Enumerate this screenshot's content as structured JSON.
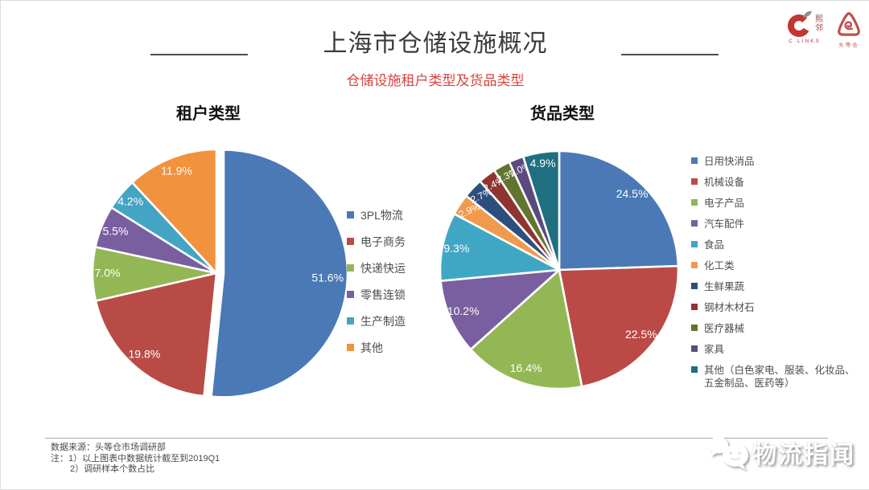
{
  "header": {
    "title": "上海市仓储设施概况",
    "subtitle": "仓储设施租户类型及货品类型"
  },
  "logos": {
    "clinks": {
      "cn1": "熙",
      "cn2": "邻",
      "en": "C·LINKS"
    },
    "toudengcang": {
      "label": "头等仓"
    }
  },
  "chart_data": [
    {
      "type": "pie",
      "title": "租户类型",
      "start_angle": 0,
      "direction": "clockwise",
      "legend_position": "right",
      "slices": [
        {
          "label": "3PL物流",
          "value": 51.6,
          "display": "51.6%",
          "color": "#4a79b6",
          "explode": 9
        },
        {
          "label": "电子商务",
          "value": 19.8,
          "display": "19.8%",
          "color": "#b94b47"
        },
        {
          "label": "快递快运",
          "value": 7.0,
          "display": "7.0%",
          "color": "#93b755"
        },
        {
          "label": "零售连锁",
          "value": 5.5,
          "display": "5.5%",
          "color": "#7a5fa0"
        },
        {
          "label": "生产制造",
          "value": 4.2,
          "display": "4.2%",
          "color": "#43a5c3"
        },
        {
          "label": "其他",
          "value": 11.9,
          "display": "11.9%",
          "color": "#f0923e"
        }
      ]
    },
    {
      "type": "pie",
      "title": "货品类型",
      "start_angle": 0,
      "direction": "clockwise",
      "legend_position": "right",
      "slices": [
        {
          "label": "日用快消品",
          "value": 24.5,
          "display": "24.5%",
          "color": "#4a79b6"
        },
        {
          "label": "机械设备",
          "value": 22.5,
          "display": "22.5%",
          "color": "#bb4a47"
        },
        {
          "label": "电子产品",
          "value": 16.4,
          "display": "16.4%",
          "color": "#93b755"
        },
        {
          "label": "汽车配件",
          "value": 10.2,
          "display": "10.2%",
          "color": "#7a5fa0"
        },
        {
          "label": "食品",
          "value": 9.3,
          "display": "9.3%",
          "color": "#3fa7c4"
        },
        {
          "label": "化工类",
          "value": 2.9,
          "display": "2.9%",
          "color": "#f09a4e"
        },
        {
          "label": "生鲜果蔬",
          "value": 2.7,
          "display": "2.7%",
          "color": "#2e4e7d"
        },
        {
          "label": "钢材木材石",
          "value": 2.4,
          "display": "2.4%",
          "color": "#8e3431"
        },
        {
          "label": "医疗器械",
          "value": 2.3,
          "display": "2.3%",
          "color": "#62752f"
        },
        {
          "label": "家具",
          "value": 2.0,
          "display": "2.0%",
          "color": "#5b4a7e"
        },
        {
          "label": "其他（白色家电、服装、化妆品、五金制品、医药等）",
          "value": 4.9,
          "display": "4.9%",
          "color": "#1f6f80"
        }
      ]
    }
  ],
  "footer": {
    "source": "数据来源：头等仓市场调研部",
    "note1": "注：1）以上图表中数据统计截至到2019Q1",
    "note2": "2）调研样本个数占比"
  },
  "watermark": {
    "text": "物流指闻"
  }
}
